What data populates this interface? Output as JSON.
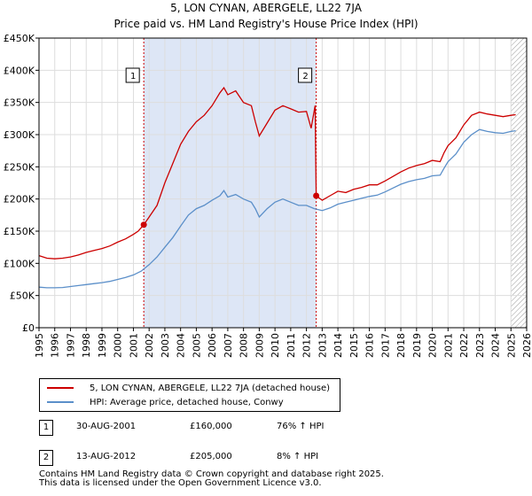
{
  "title_line1": "5, LON CYNAN, ABERGELE, LL22 7JA",
  "title_line2": "Price paid vs. HM Land Registry's House Price Index (HPI)",
  "legend": {
    "property_label": "5, LON CYNAN, ABERGELE, LL22 7JA (detached house)",
    "hpi_label": "HPI: Average price, detached house, Conwy"
  },
  "colors": {
    "property": "#cc0000",
    "hpi": "#5b8fc9",
    "shade": "#dde6f6",
    "grid": "#dddddd",
    "marker_line": "#cc0000",
    "hatch": "#888888"
  },
  "sales": [
    {
      "num": "1",
      "date": "30-AUG-2001",
      "price": "£160,000",
      "hpi": "76% ↑ HPI"
    },
    {
      "num": "2",
      "date": "13-AUG-2012",
      "price": "£205,000",
      "hpi": "8% ↑ HPI"
    }
  ],
  "footer_line1": "Contains HM Land Registry data © Crown copyright and database right 2025.",
  "footer_line2": "This data is licensed under the Open Government Licence v3.0.",
  "chart_data": {
    "type": "line",
    "title": "5, LON CYNAN, ABERGELE, LL22 7JA",
    "subtitle": "Price paid vs. HM Land Registry's House Price Index (HPI)",
    "xlim": [
      1995,
      2026
    ],
    "ylim": [
      0,
      450000
    ],
    "x_ticks": [
      1995,
      1996,
      1997,
      1998,
      1999,
      2000,
      2001,
      2002,
      2003,
      2004,
      2005,
      2006,
      2007,
      2008,
      2009,
      2010,
      2011,
      2012,
      2013,
      2014,
      2015,
      2016,
      2017,
      2018,
      2019,
      2020,
      2021,
      2022,
      2023,
      2024,
      2025,
      2026
    ],
    "y_ticks": [
      0,
      50000,
      100000,
      150000,
      200000,
      250000,
      300000,
      350000,
      400000,
      450000
    ],
    "y_tick_labels": [
      "£0",
      "£50K",
      "£100K",
      "£150K",
      "£200K",
      "£250K",
      "£300K",
      "£350K",
      "£400K",
      "£450K"
    ],
    "shaded_period": [
      2001.66,
      2012.62
    ],
    "hatched_after": 2025.0,
    "sale_markers": [
      {
        "label": "1",
        "x": 2001.66,
        "y": 160000
      },
      {
        "label": "2",
        "x": 2012.62,
        "y": 205000
      }
    ],
    "series": [
      {
        "name": "5, LON CYNAN, ABERGELE, LL22 7JA (detached house)",
        "points": [
          [
            1995.0,
            112000
          ],
          [
            1995.5,
            108000
          ],
          [
            1996.0,
            107000
          ],
          [
            1996.5,
            108000
          ],
          [
            1997.0,
            110000
          ],
          [
            1997.5,
            113000
          ],
          [
            1998.0,
            117000
          ],
          [
            1998.5,
            120000
          ],
          [
            1999.0,
            123000
          ],
          [
            1999.5,
            127000
          ],
          [
            2000.0,
            133000
          ],
          [
            2000.5,
            138000
          ],
          [
            2001.0,
            145000
          ],
          [
            2001.3,
            150000
          ],
          [
            2001.66,
            160000
          ],
          [
            2002.0,
            172000
          ],
          [
            2002.5,
            190000
          ],
          [
            2003.0,
            225000
          ],
          [
            2003.5,
            255000
          ],
          [
            2004.0,
            285000
          ],
          [
            2004.5,
            305000
          ],
          [
            2005.0,
            320000
          ],
          [
            2005.5,
            330000
          ],
          [
            2006.0,
            345000
          ],
          [
            2006.5,
            365000
          ],
          [
            2006.75,
            373000
          ],
          [
            2007.0,
            362000
          ],
          [
            2007.5,
            368000
          ],
          [
            2008.0,
            350000
          ],
          [
            2008.5,
            345000
          ],
          [
            2008.75,
            320000
          ],
          [
            2009.0,
            298000
          ],
          [
            2009.5,
            318000
          ],
          [
            2010.0,
            338000
          ],
          [
            2010.5,
            345000
          ],
          [
            2011.0,
            340000
          ],
          [
            2011.5,
            335000
          ],
          [
            2012.0,
            336000
          ],
          [
            2012.3,
            310000
          ],
          [
            2012.55,
            345000
          ],
          [
            2012.62,
            205000
          ],
          [
            2013.0,
            198000
          ],
          [
            2013.5,
            205000
          ],
          [
            2014.0,
            212000
          ],
          [
            2014.5,
            210000
          ],
          [
            2015.0,
            215000
          ],
          [
            2015.5,
            218000
          ],
          [
            2016.0,
            222000
          ],
          [
            2016.5,
            222000
          ],
          [
            2017.0,
            228000
          ],
          [
            2017.5,
            235000
          ],
          [
            2018.0,
            242000
          ],
          [
            2018.5,
            248000
          ],
          [
            2019.0,
            252000
          ],
          [
            2019.5,
            255000
          ],
          [
            2020.0,
            260000
          ],
          [
            2020.5,
            258000
          ],
          [
            2020.75,
            272000
          ],
          [
            2021.0,
            283000
          ],
          [
            2021.5,
            295000
          ],
          [
            2022.0,
            315000
          ],
          [
            2022.5,
            330000
          ],
          [
            2023.0,
            335000
          ],
          [
            2023.5,
            332000
          ],
          [
            2024.0,
            330000
          ],
          [
            2024.5,
            328000
          ],
          [
            2025.0,
            330000
          ],
          [
            2025.3,
            331000
          ]
        ]
      },
      {
        "name": "HPI: Average price, detached house, Conwy",
        "points": [
          [
            1995.0,
            63000
          ],
          [
            1995.5,
            62000
          ],
          [
            1996.0,
            62000
          ],
          [
            1996.5,
            62500
          ],
          [
            1997.0,
            64000
          ],
          [
            1997.5,
            65500
          ],
          [
            1998.0,
            67000
          ],
          [
            1998.5,
            68500
          ],
          [
            1999.0,
            70000
          ],
          [
            1999.5,
            72000
          ],
          [
            2000.0,
            75000
          ],
          [
            2000.5,
            78000
          ],
          [
            2001.0,
            82000
          ],
          [
            2001.5,
            88000
          ],
          [
            2002.0,
            98000
          ],
          [
            2002.5,
            110000
          ],
          [
            2003.0,
            125000
          ],
          [
            2003.5,
            140000
          ],
          [
            2004.0,
            158000
          ],
          [
            2004.5,
            175000
          ],
          [
            2005.0,
            185000
          ],
          [
            2005.5,
            190000
          ],
          [
            2006.0,
            198000
          ],
          [
            2006.5,
            205000
          ],
          [
            2006.75,
            213000
          ],
          [
            2007.0,
            203000
          ],
          [
            2007.5,
            207000
          ],
          [
            2008.0,
            200000
          ],
          [
            2008.5,
            195000
          ],
          [
            2008.75,
            185000
          ],
          [
            2009.0,
            172000
          ],
          [
            2009.5,
            185000
          ],
          [
            2010.0,
            195000
          ],
          [
            2010.5,
            200000
          ],
          [
            2011.0,
            195000
          ],
          [
            2011.5,
            190000
          ],
          [
            2012.0,
            190000
          ],
          [
            2012.5,
            185000
          ],
          [
            2013.0,
            182000
          ],
          [
            2013.5,
            186000
          ],
          [
            2014.0,
            192000
          ],
          [
            2014.5,
            195000
          ],
          [
            2015.0,
            198000
          ],
          [
            2015.5,
            201000
          ],
          [
            2016.0,
            204000
          ],
          [
            2016.5,
            206000
          ],
          [
            2017.0,
            211000
          ],
          [
            2017.5,
            217000
          ],
          [
            2018.0,
            223000
          ],
          [
            2018.5,
            227000
          ],
          [
            2019.0,
            230000
          ],
          [
            2019.5,
            232000
          ],
          [
            2020.0,
            236000
          ],
          [
            2020.5,
            237000
          ],
          [
            2020.75,
            248000
          ],
          [
            2021.0,
            258000
          ],
          [
            2021.5,
            270000
          ],
          [
            2022.0,
            288000
          ],
          [
            2022.5,
            300000
          ],
          [
            2023.0,
            308000
          ],
          [
            2023.5,
            305000
          ],
          [
            2024.0,
            303000
          ],
          [
            2024.5,
            302000
          ],
          [
            2025.0,
            305000
          ],
          [
            2025.3,
            306000
          ]
        ]
      }
    ]
  }
}
